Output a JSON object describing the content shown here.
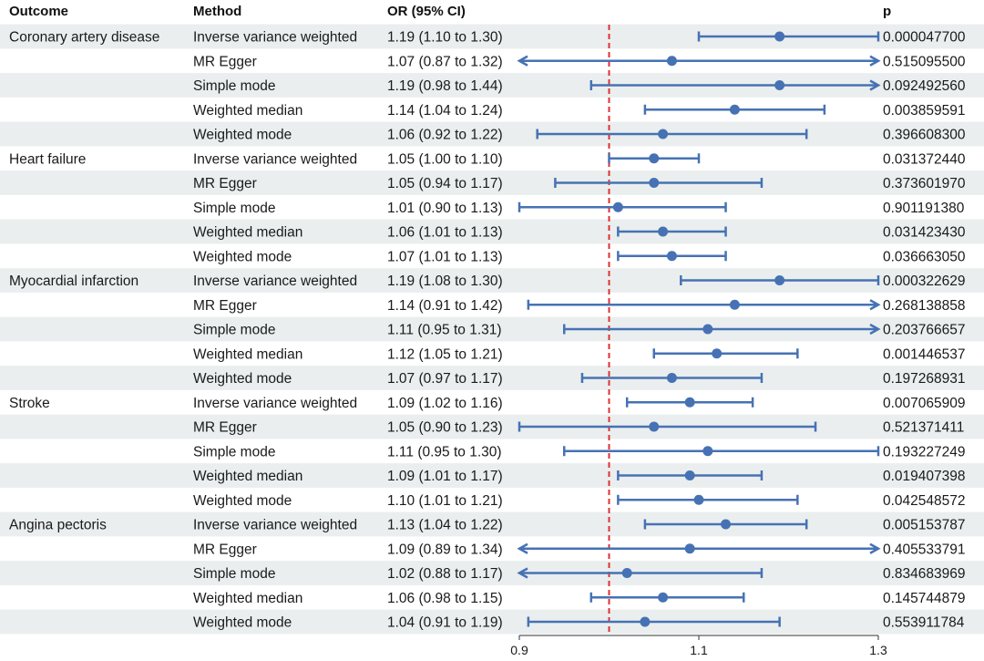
{
  "chart_data": {
    "type": "forest",
    "headers": {
      "outcome": "Outcome",
      "method": "Method",
      "or": "OR (95% CI)",
      "p": "p"
    },
    "xlim": [
      0.9,
      1.3
    ],
    "xticks": [
      0.9,
      1.1,
      1.3
    ],
    "xtick_labels": [
      "0.9",
      "1.1",
      "1.3"
    ],
    "reference_line": 1.0,
    "colors": {
      "marker": "#4672b4",
      "reference": "#e03030",
      "stripe": "#eaeeee"
    },
    "groups": [
      {
        "outcome": "Coronary artery disease",
        "rows": [
          {
            "method": "Inverse variance weighted",
            "or": 1.19,
            "lo": 1.1,
            "hi": 1.3,
            "or_text": "1.19 (1.10 to 1.30)",
            "p": "0.000047700"
          },
          {
            "method": "MR Egger",
            "or": 1.07,
            "lo": 0.87,
            "hi": 1.32,
            "or_text": "1.07 (0.87 to 1.32)",
            "p": "0.515095500"
          },
          {
            "method": "Simple mode",
            "or": 1.19,
            "lo": 0.98,
            "hi": 1.44,
            "or_text": "1.19 (0.98 to 1.44)",
            "p": "0.092492560"
          },
          {
            "method": "Weighted median",
            "or": 1.14,
            "lo": 1.04,
            "hi": 1.24,
            "or_text": "1.14 (1.04 to 1.24)",
            "p": "0.003859591"
          },
          {
            "method": "Weighted mode",
            "or": 1.06,
            "lo": 0.92,
            "hi": 1.22,
            "or_text": "1.06 (0.92 to 1.22)",
            "p": "0.396608300"
          }
        ]
      },
      {
        "outcome": "Heart failure",
        "rows": [
          {
            "method": "Inverse variance weighted",
            "or": 1.05,
            "lo": 1.0,
            "hi": 1.1,
            "or_text": "1.05 (1.00 to 1.10)",
            "p": "0.031372440"
          },
          {
            "method": "MR Egger",
            "or": 1.05,
            "lo": 0.94,
            "hi": 1.17,
            "or_text": "1.05 (0.94 to 1.17)",
            "p": "0.373601970"
          },
          {
            "method": "Simple mode",
            "or": 1.01,
            "lo": 0.9,
            "hi": 1.13,
            "or_text": "1.01 (0.90 to 1.13)",
            "p": "0.901191380"
          },
          {
            "method": "Weighted median",
            "or": 1.06,
            "lo": 1.01,
            "hi": 1.13,
            "or_text": "1.06 (1.01 to 1.13)",
            "p": "0.031423430"
          },
          {
            "method": "Weighted mode",
            "or": 1.07,
            "lo": 1.01,
            "hi": 1.13,
            "or_text": "1.07 (1.01 to 1.13)",
            "p": "0.036663050"
          }
        ]
      },
      {
        "outcome": "Myocardial infarction",
        "rows": [
          {
            "method": "Inverse variance weighted",
            "or": 1.19,
            "lo": 1.08,
            "hi": 1.3,
            "or_text": "1.19 (1.08 to 1.30)",
            "p": "0.000322629"
          },
          {
            "method": "MR Egger",
            "or": 1.14,
            "lo": 0.91,
            "hi": 1.42,
            "or_text": "1.14 (0.91 to 1.42)",
            "p": "0.268138858"
          },
          {
            "method": "Simple mode",
            "or": 1.11,
            "lo": 0.95,
            "hi": 1.31,
            "or_text": "1.11 (0.95 to 1.31)",
            "p": "0.203766657"
          },
          {
            "method": "Weighted median",
            "or": 1.12,
            "lo": 1.05,
            "hi": 1.21,
            "or_text": "1.12 (1.05 to 1.21)",
            "p": "0.001446537"
          },
          {
            "method": "Weighted mode",
            "or": 1.07,
            "lo": 0.97,
            "hi": 1.17,
            "or_text": "1.07 (0.97 to 1.17)",
            "p": "0.197268931"
          }
        ]
      },
      {
        "outcome": "Stroke",
        "rows": [
          {
            "method": "Inverse variance weighted",
            "or": 1.09,
            "lo": 1.02,
            "hi": 1.16,
            "or_text": "1.09 (1.02 to 1.16)",
            "p": "0.007065909"
          },
          {
            "method": "MR Egger",
            "or": 1.05,
            "lo": 0.9,
            "hi": 1.23,
            "or_text": "1.05 (0.90 to 1.23)",
            "p": "0.521371411"
          },
          {
            "method": "Simple mode",
            "or": 1.11,
            "lo": 0.95,
            "hi": 1.3,
            "or_text": "1.11 (0.95 to 1.30)",
            "p": "0.193227249"
          },
          {
            "method": "Weighted median",
            "or": 1.09,
            "lo": 1.01,
            "hi": 1.17,
            "or_text": "1.09 (1.01 to 1.17)",
            "p": "0.019407398"
          },
          {
            "method": "Weighted mode",
            "or": 1.1,
            "lo": 1.01,
            "hi": 1.21,
            "or_text": "1.10 (1.01 to 1.21)",
            "p": "0.042548572"
          }
        ]
      },
      {
        "outcome": "Angina pectoris",
        "rows": [
          {
            "method": "Inverse variance weighted",
            "or": 1.13,
            "lo": 1.04,
            "hi": 1.22,
            "or_text": "1.13 (1.04 to 1.22)",
            "p": "0.005153787"
          },
          {
            "method": "MR Egger",
            "or": 1.09,
            "lo": 0.89,
            "hi": 1.34,
            "or_text": "1.09 (0.89 to 1.34)",
            "p": "0.405533791"
          },
          {
            "method": "Simple mode",
            "or": 1.02,
            "lo": 0.88,
            "hi": 1.17,
            "or_text": "1.02 (0.88 to 1.17)",
            "p": "0.834683969"
          },
          {
            "method": "Weighted median",
            "or": 1.06,
            "lo": 0.98,
            "hi": 1.15,
            "or_text": "1.06 (0.98 to 1.15)",
            "p": "0.145744879"
          },
          {
            "method": "Weighted mode",
            "or": 1.04,
            "lo": 0.91,
            "hi": 1.19,
            "or_text": "1.04 (0.91 to 1.19)",
            "p": "0.553911784"
          }
        ]
      }
    ]
  }
}
